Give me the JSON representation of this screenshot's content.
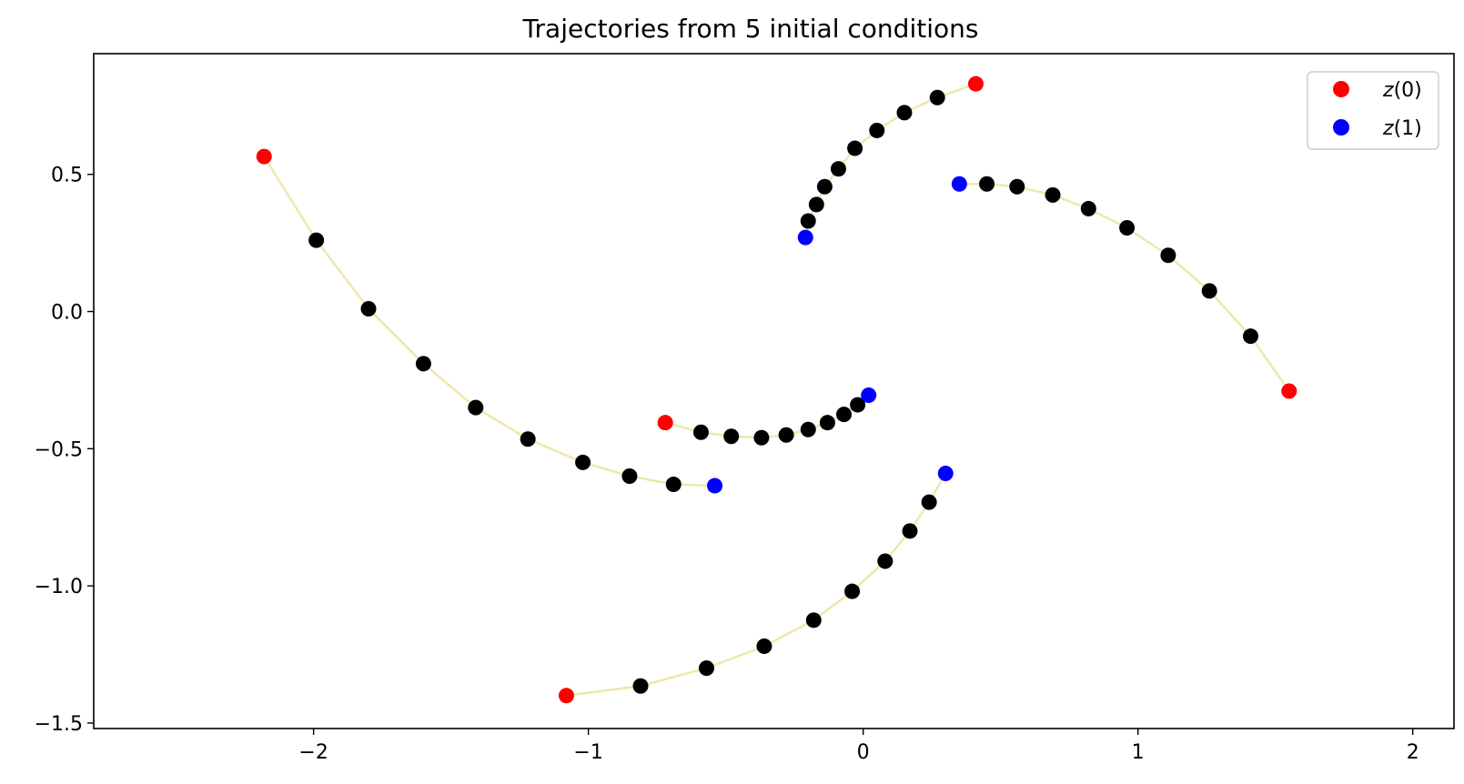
{
  "chart_data": {
    "type": "scatter",
    "title": "Trajectories from 5 initial conditions",
    "xlabel": "",
    "ylabel": "",
    "xlim": [
      -2.8,
      2.15
    ],
    "ylim": [
      -1.52,
      0.94
    ],
    "xticks": [
      -2,
      -1,
      0,
      1,
      2
    ],
    "xtick_labels": [
      "−2",
      "−1",
      "0",
      "1",
      "2"
    ],
    "yticks": [
      -1.5,
      -1.0,
      -0.5,
      0.0,
      0.5
    ],
    "ytick_labels": [
      "−1.5",
      "−1.0",
      "−0.5",
      "0.0",
      "0.5"
    ],
    "grid": false,
    "legend_position": "top-right",
    "legend": [
      {
        "symbol": "z",
        "rest": "(0)",
        "color": "#ff0000"
      },
      {
        "symbol": "z",
        "rest": "(1)",
        "color": "#0000ff"
      }
    ],
    "colors": {
      "start": "#ff0000",
      "end": "#0000ff",
      "intermediate": "#000000",
      "trajectory_line": "#eee8aa"
    },
    "trajectories": [
      {
        "start": [
          -2.18,
          0.565
        ],
        "end": [
          -0.54,
          -0.635
        ],
        "intermediate": [
          [
            -1.99,
            0.26
          ],
          [
            -1.8,
            0.01
          ],
          [
            -1.6,
            -0.19
          ],
          [
            -1.41,
            -0.35
          ],
          [
            -1.22,
            -0.465
          ],
          [
            -1.02,
            -0.55
          ],
          [
            -0.85,
            -0.6
          ],
          [
            -0.69,
            -0.63
          ]
        ]
      },
      {
        "start": [
          0.41,
          0.83
        ],
        "end": [
          -0.21,
          0.27
        ],
        "intermediate": [
          [
            0.27,
            0.78
          ],
          [
            0.15,
            0.725
          ],
          [
            0.05,
            0.66
          ],
          [
            -0.03,
            0.595
          ],
          [
            -0.09,
            0.52
          ],
          [
            -0.14,
            0.455
          ],
          [
            -0.17,
            0.39
          ],
          [
            -0.2,
            0.33
          ]
        ]
      },
      {
        "start": [
          1.55,
          -0.29
        ],
        "end": [
          0.35,
          0.465
        ],
        "intermediate": [
          [
            1.41,
            -0.09
          ],
          [
            1.26,
            0.075
          ],
          [
            1.11,
            0.205
          ],
          [
            0.96,
            0.305
          ],
          [
            0.82,
            0.375
          ],
          [
            0.69,
            0.425
          ],
          [
            0.56,
            0.455
          ],
          [
            0.45,
            0.465
          ]
        ]
      },
      {
        "start": [
          -0.72,
          -0.405
        ],
        "end": [
          0.02,
          -0.305
        ],
        "intermediate": [
          [
            -0.59,
            -0.44
          ],
          [
            -0.48,
            -0.455
          ],
          [
            -0.37,
            -0.46
          ],
          [
            -0.28,
            -0.45
          ],
          [
            -0.2,
            -0.43
          ],
          [
            -0.13,
            -0.405
          ],
          [
            -0.07,
            -0.375
          ],
          [
            -0.02,
            -0.34
          ]
        ]
      },
      {
        "start": [
          -1.08,
          -1.4
        ],
        "end": [
          0.3,
          -0.59
        ],
        "intermediate": [
          [
            -0.81,
            -1.365
          ],
          [
            -0.57,
            -1.3
          ],
          [
            -0.36,
            -1.22
          ],
          [
            -0.18,
            -1.125
          ],
          [
            -0.04,
            -1.02
          ],
          [
            0.08,
            -0.91
          ],
          [
            0.17,
            -0.8
          ],
          [
            0.24,
            -0.695
          ]
        ]
      }
    ]
  }
}
